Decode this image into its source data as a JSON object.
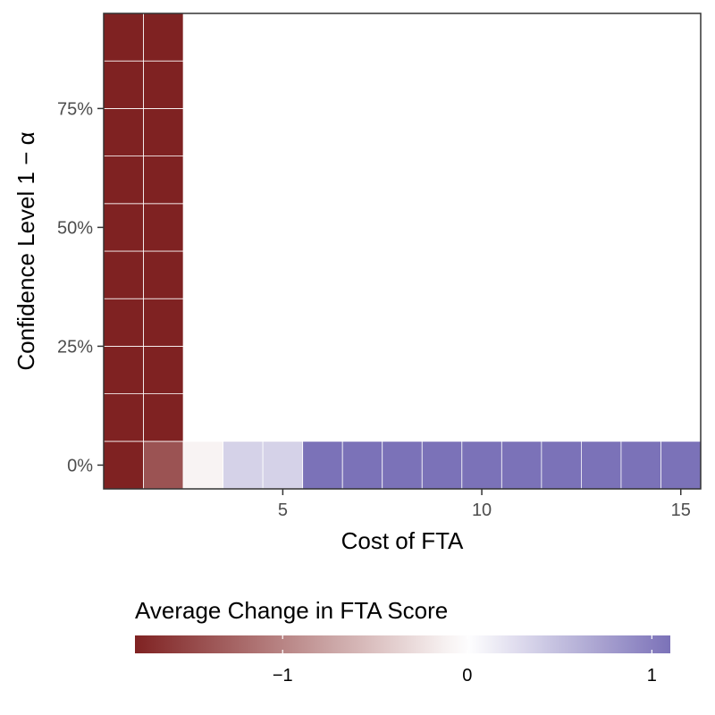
{
  "chart_data": {
    "type": "heatmap",
    "xlabel": "Cost of FTA",
    "ylabel": "Confidence Level 1 − α",
    "x_ticks": [
      5,
      10,
      15
    ],
    "x_tick_labels": [
      "5",
      "10",
      "15"
    ],
    "y_ticks": [
      0,
      0.25,
      0.5,
      0.75
    ],
    "y_tick_labels": [
      "0%",
      "25%",
      "50%",
      "75%"
    ],
    "xlim": [
      0.5,
      15.5
    ],
    "ylim": [
      -0.05,
      0.95
    ],
    "y_levels": [
      0,
      0.1,
      0.2,
      0.3,
      0.4,
      0.5,
      0.6,
      0.7,
      0.8,
      0.9
    ],
    "x_levels": [
      1,
      2,
      3,
      4,
      5,
      6,
      7,
      8,
      9,
      10,
      11,
      12,
      13,
      14,
      15
    ],
    "cells": [
      {
        "x": 1,
        "y": 0,
        "value": -1.8
      },
      {
        "x": 2,
        "y": 0,
        "value": -1.4
      },
      {
        "x": 3,
        "y": 0,
        "value": -0.1
      },
      {
        "x": 4,
        "y": 0,
        "value": 0.35
      },
      {
        "x": 5,
        "y": 0,
        "value": 0.35
      },
      {
        "x": 6,
        "y": 0,
        "value": 1.1
      },
      {
        "x": 7,
        "y": 0,
        "value": 1.1
      },
      {
        "x": 8,
        "y": 0,
        "value": 1.1
      },
      {
        "x": 9,
        "y": 0,
        "value": 1.1
      },
      {
        "x": 10,
        "y": 0,
        "value": 1.1
      },
      {
        "x": 11,
        "y": 0,
        "value": 1.1
      },
      {
        "x": 12,
        "y": 0,
        "value": 1.1
      },
      {
        "x": 13,
        "y": 0,
        "value": 1.1
      },
      {
        "x": 14,
        "y": 0,
        "value": 1.1
      },
      {
        "x": 15,
        "y": 0,
        "value": 1.1
      },
      {
        "x": 1,
        "y": 0.1,
        "value": -1.8
      },
      {
        "x": 2,
        "y": 0.1,
        "value": -1.8
      },
      {
        "x": 1,
        "y": 0.2,
        "value": -1.8
      },
      {
        "x": 2,
        "y": 0.2,
        "value": -1.8
      },
      {
        "x": 1,
        "y": 0.3,
        "value": -1.8
      },
      {
        "x": 2,
        "y": 0.3,
        "value": -1.8
      },
      {
        "x": 1,
        "y": 0.4,
        "value": -1.8
      },
      {
        "x": 2,
        "y": 0.4,
        "value": -1.8
      },
      {
        "x": 1,
        "y": 0.5,
        "value": -1.8
      },
      {
        "x": 2,
        "y": 0.5,
        "value": -1.8
      },
      {
        "x": 1,
        "y": 0.6,
        "value": -1.8
      },
      {
        "x": 2,
        "y": 0.6,
        "value": -1.8
      },
      {
        "x": 1,
        "y": 0.7,
        "value": -1.8
      },
      {
        "x": 2,
        "y": 0.7,
        "value": -1.8
      },
      {
        "x": 1,
        "y": 0.8,
        "value": -1.8
      },
      {
        "x": 2,
        "y": 0.8,
        "value": -1.8
      },
      {
        "x": 1,
        "y": 0.9,
        "value": -1.8
      },
      {
        "x": 2,
        "y": 0.9,
        "value": -1.8
      }
    ],
    "legend": {
      "title": "Average Change in FTA Score",
      "position": "bottom",
      "range": [
        -1.8,
        1.1
      ],
      "breaks": [
        -1,
        0,
        1
      ],
      "break_labels": [
        "−1",
        "0",
        "1"
      ],
      "low_color": "#7f2222",
      "mid_color": "#ffffff",
      "high_color": "#7b72b8"
    },
    "grid": false,
    "panel_border": true
  }
}
